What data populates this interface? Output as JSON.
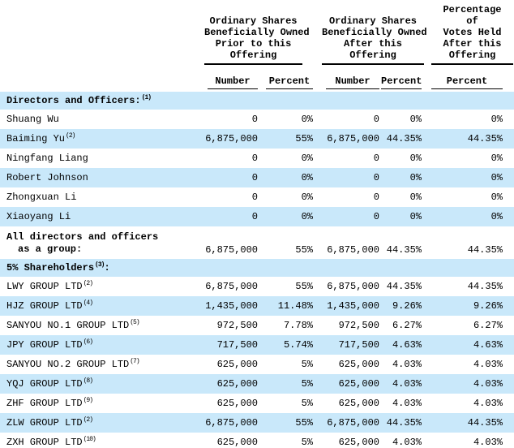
{
  "colors": {
    "row_stripe": "#c9e8fa",
    "text": "#000000",
    "rule": "#000000"
  },
  "table": {
    "column_groups": [
      {
        "lines": [
          "Ordinary Shares",
          "Beneficially Owned",
          "Prior to this",
          "Offering"
        ]
      },
      {
        "lines": [
          "Ordinary Shares",
          "Beneficially Owned",
          "After this",
          "Offering"
        ]
      },
      {
        "lines": [
          "Percentage",
          "of",
          "Votes Held",
          "After this",
          "Offering"
        ]
      }
    ],
    "sub_headers": [
      "Number",
      "Percent",
      "Number",
      "Percent",
      "Percent"
    ],
    "rows": [
      {
        "kind": "section",
        "label": "Directors and Officers:",
        "sup": "(1)",
        "suffix": "",
        "shaded": true
      },
      {
        "kind": "data",
        "label": "Shuang Wu",
        "sup": "",
        "values": [
          "0",
          "0%",
          "0",
          "0%",
          "0%"
        ],
        "shaded": false
      },
      {
        "kind": "data",
        "label": "Baiming Yu",
        "sup": "(2)",
        "values": [
          "6,875,000",
          "55%",
          "6,875,000",
          "44.35%",
          "44.35%"
        ],
        "shaded": true
      },
      {
        "kind": "data",
        "label": "Ningfang Liang",
        "sup": "",
        "values": [
          "0",
          "0%",
          "0",
          "0%",
          "0%"
        ],
        "shaded": false
      },
      {
        "kind": "data",
        "label": "Robert Johnson",
        "sup": "",
        "values": [
          "0",
          "0%",
          "0",
          "0%",
          "0%"
        ],
        "shaded": true
      },
      {
        "kind": "data",
        "label": "Zhongxuan Li",
        "sup": "",
        "values": [
          "0",
          "0%",
          "0",
          "0%",
          "0%"
        ],
        "shaded": false
      },
      {
        "kind": "data",
        "label": "Xiaoyang Li",
        "sup": "",
        "values": [
          "0",
          "0%",
          "0",
          "0%",
          "0%"
        ],
        "shaded": true
      },
      {
        "kind": "total",
        "label_line1": "All directors and officers",
        "label_line2": "as a group:",
        "values": [
          "6,875,000",
          "55%",
          "6,875,000",
          "44.35%",
          "44.35%"
        ],
        "shaded": false
      },
      {
        "kind": "section",
        "label": "5% Shareholders",
        "sup": "(3)",
        "suffix": ":",
        "shaded": true
      },
      {
        "kind": "data",
        "label": "LWY GROUP LTD",
        "sup": "(2)",
        "values": [
          "6,875,000",
          "55%",
          "6,875,000",
          "44.35%",
          "44.35%"
        ],
        "shaded": false
      },
      {
        "kind": "data",
        "label": "HJZ GROUP LTD",
        "sup": "(4)",
        "values": [
          "1,435,000",
          "11.48%",
          "1,435,000",
          "9.26%",
          "9.26%"
        ],
        "shaded": true
      },
      {
        "kind": "data",
        "label": "SANYOU NO.1 GROUP LTD",
        "sup": "(5)",
        "values": [
          "972,500",
          "7.78%",
          "972,500",
          "6.27%",
          "6.27%"
        ],
        "shaded": false
      },
      {
        "kind": "data",
        "label": "JPY GROUP LTD",
        "sup": "(6)",
        "values": [
          "717,500",
          "5.74%",
          "717,500",
          "4.63%",
          "4.63%"
        ],
        "shaded": true
      },
      {
        "kind": "data",
        "label": "SANYOU NO.2 GROUP LTD",
        "sup": "(7)",
        "values": [
          "625,000",
          "5%",
          "625,000",
          "4.03%",
          "4.03%"
        ],
        "shaded": false
      },
      {
        "kind": "data",
        "label": "YQJ GROUP LTD",
        "sup": "(8)",
        "values": [
          "625,000",
          "5%",
          "625,000",
          "4.03%",
          "4.03%"
        ],
        "shaded": true
      },
      {
        "kind": "data",
        "label": "ZHF GROUP LTD",
        "sup": "(9)",
        "values": [
          "625,000",
          "5%",
          "625,000",
          "4.03%",
          "4.03%"
        ],
        "shaded": false
      },
      {
        "kind": "data",
        "label": "ZLW GROUP LTD",
        "sup": "(2)",
        "values": [
          "6,875,000",
          "55%",
          "6,875,000",
          "44.35%",
          "44.35%"
        ],
        "shaded": true
      },
      {
        "kind": "data",
        "label": "ZXH GROUP LTD",
        "sup": "(10)",
        "values": [
          "625,000",
          "5%",
          "625,000",
          "4.03%",
          "4.03%"
        ],
        "shaded": false
      }
    ]
  }
}
